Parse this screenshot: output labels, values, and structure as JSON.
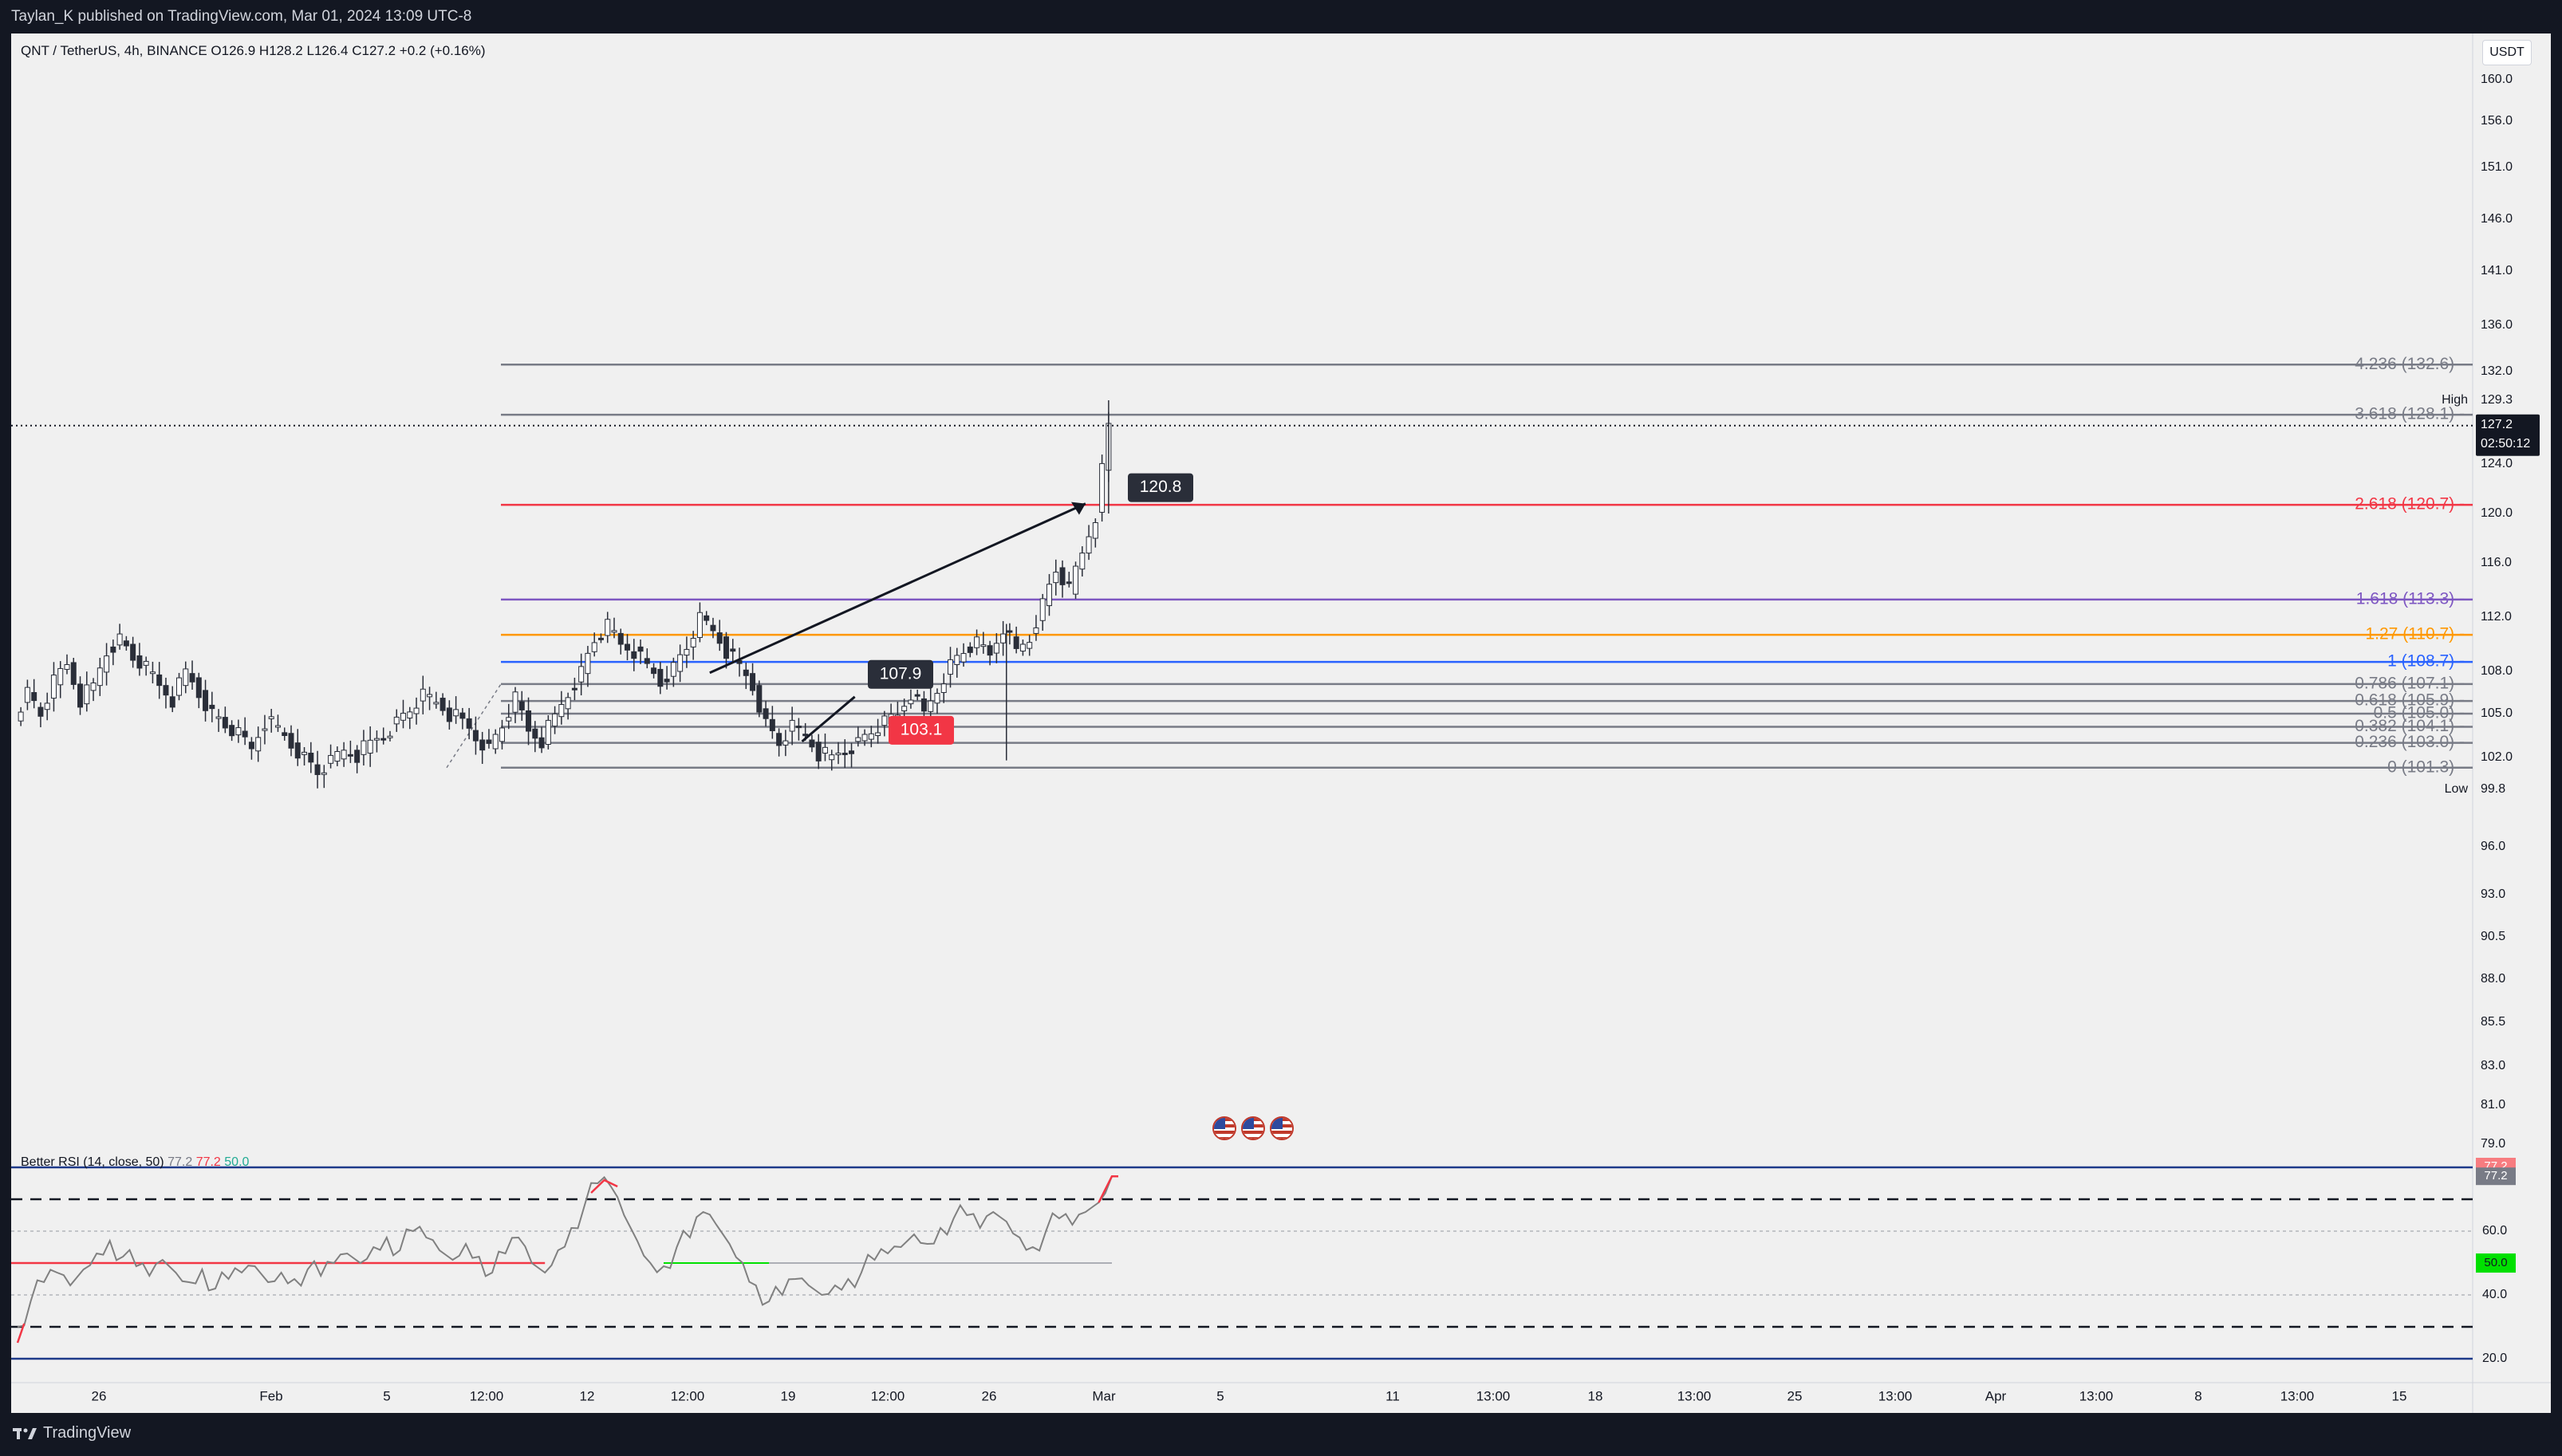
{
  "header": {
    "published_text": "Taylan_K published on TradingView.com, Mar 01, 2024 13:09 UTC-8"
  },
  "symbol": {
    "name": "QNT / TetherUS, 4h, BINANCE",
    "open": "O126.9",
    "high": "H128.2",
    "low": "L126.4",
    "close": "C127.2",
    "change": "+0.2 (+0.16%)"
  },
  "currency_badge": "USDT",
  "footer": {
    "brand": "TradingView"
  },
  "colors": {
    "background": "#131722",
    "chart_bg": "#f0f0f0",
    "candle": "#2a2e39",
    "fib_gray": "#787b86",
    "fib_red": "#f23645",
    "fib_purple": "#7e57c2",
    "fib_orange": "#ff9800",
    "fib_blue": "#2962ff",
    "rsi_line": "#808080",
    "rsi_band": "#1e3a8a",
    "rsi_red": "#f23645",
    "rsi_green": "#00e000"
  },
  "icons": [
    "us-flag-event-icon",
    "us-flag-event-icon",
    "us-flag-event-icon"
  ],
  "chart_data": [
    {
      "type": "candlestick",
      "symbol": "QNT / TetherUS",
      "timeframe": "4h",
      "exchange": "BINANCE",
      "ohlc_last": {
        "open": 126.9,
        "high": 128.2,
        "low": 126.4,
        "close": 127.2,
        "change": 0.2,
        "change_pct": 0.16
      },
      "last_price": "127.2",
      "countdown": "02:50:12",
      "high_marker": {
        "label": "High",
        "value": "129.3"
      },
      "low_marker": {
        "label": "Low",
        "value": "99.8"
      },
      "y_ticks": [
        "160.0",
        "156.0",
        "151.0",
        "146.0",
        "141.0",
        "136.0",
        "132.0",
        "129.3",
        "124.0",
        "120.0",
        "116.0",
        "112.0",
        "108.0",
        "105.0",
        "102.0",
        "99.8",
        "96.0",
        "93.0",
        "90.5",
        "88.0",
        "85.5",
        "83.0",
        "81.0",
        "79.0"
      ],
      "x_ticks": [
        "26",
        "Feb",
        "5",
        "12:00",
        "12",
        "12:00",
        "19",
        "12:00",
        "26",
        "Mar",
        "5",
        "11",
        "13:00",
        "18",
        "13:00",
        "25",
        "13:00",
        "Apr",
        "13:00",
        "8",
        "13:00",
        "15"
      ],
      "fib_levels": [
        {
          "label": "4.236 (132.6)",
          "value": 132.6,
          "color": "#787b86"
        },
        {
          "label": "3.618 (128.1)",
          "value": 128.1,
          "color": "#787b86"
        },
        {
          "label": "2.618 (120.7)",
          "value": 120.7,
          "color": "#f23645"
        },
        {
          "label": "1.618 (113.3)",
          "value": 113.3,
          "color": "#7e57c2"
        },
        {
          "label": "1.27 (110.7)",
          "value": 110.7,
          "color": "#ff9800"
        },
        {
          "label": "1 (108.7)",
          "value": 108.7,
          "color": "#2962ff"
        },
        {
          "label": "0.786 (107.1)",
          "value": 107.1,
          "color": "#787b86"
        },
        {
          "label": "0.618 (105.9)",
          "value": 105.9,
          "color": "#787b86"
        },
        {
          "label": "0.5 (105.0)",
          "value": 105.0,
          "color": "#787b86"
        },
        {
          "label": "0.382 (104.1)",
          "value": 104.1,
          "color": "#787b86"
        },
        {
          "label": "0.236 (103.0)",
          "value": 103.0,
          "color": "#787b86"
        },
        {
          "label": "0 (101.3)",
          "value": 101.3,
          "color": "#787b86"
        }
      ],
      "annotations": [
        {
          "text": "107.9",
          "value": 107.9,
          "style": "dark"
        },
        {
          "text": "103.1",
          "value": 103.1,
          "style": "red"
        },
        {
          "text": "120.8",
          "value": 120.8,
          "style": "dark"
        }
      ],
      "price_path": [
        {
          "x": 0,
          "y": 104.8
        },
        {
          "x": 4,
          "y": 106.5
        },
        {
          "x": 8,
          "y": 105.0
        },
        {
          "x": 12,
          "y": 107.2
        },
        {
          "x": 16,
          "y": 108.5
        },
        {
          "x": 20,
          "y": 106.0
        },
        {
          "x": 24,
          "y": 107.0
        },
        {
          "x": 28,
          "y": 109.5
        },
        {
          "x": 32,
          "y": 110.4
        },
        {
          "x": 36,
          "y": 109.0
        },
        {
          "x": 40,
          "y": 108.2
        },
        {
          "x": 44,
          "y": 107.0
        },
        {
          "x": 48,
          "y": 106.0
        },
        {
          "x": 52,
          "y": 108.0
        },
        {
          "x": 56,
          "y": 106.5
        },
        {
          "x": 60,
          "y": 105.0
        },
        {
          "x": 64,
          "y": 104.2
        },
        {
          "x": 68,
          "y": 103.5
        },
        {
          "x": 72,
          "y": 102.6
        },
        {
          "x": 76,
          "y": 104.5
        },
        {
          "x": 80,
          "y": 104.0
        },
        {
          "x": 84,
          "y": 103.0
        },
        {
          "x": 88,
          "y": 102.0
        },
        {
          "x": 92,
          "y": 101.0
        },
        {
          "x": 96,
          "y": 101.6
        },
        {
          "x": 100,
          "y": 102.5
        },
        {
          "x": 104,
          "y": 102.2
        },
        {
          "x": 108,
          "y": 103.0
        },
        {
          "x": 112,
          "y": 103.6
        },
        {
          "x": 116,
          "y": 104.4
        },
        {
          "x": 120,
          "y": 105.3
        },
        {
          "x": 124,
          "y": 106.2
        },
        {
          "x": 128,
          "y": 105.8
        },
        {
          "x": 132,
          "y": 105.0
        },
        {
          "x": 136,
          "y": 104.5
        },
        {
          "x": 140,
          "y": 103.5
        },
        {
          "x": 144,
          "y": 102.6
        },
        {
          "x": 148,
          "y": 104.2
        },
        {
          "x": 152,
          "y": 106.0
        },
        {
          "x": 156,
          "y": 103.8
        },
        {
          "x": 160,
          "y": 103.2
        },
        {
          "x": 164,
          "y": 104.8
        },
        {
          "x": 168,
          "y": 106.5
        },
        {
          "x": 172,
          "y": 108.0
        },
        {
          "x": 176,
          "y": 110.3
        },
        {
          "x": 180,
          "y": 111.3
        },
        {
          "x": 184,
          "y": 110.0
        },
        {
          "x": 188,
          "y": 109.5
        },
        {
          "x": 192,
          "y": 108.4
        },
        {
          "x": 196,
          "y": 107.3
        },
        {
          "x": 200,
          "y": 108.3
        },
        {
          "x": 204,
          "y": 109.8
        },
        {
          "x": 208,
          "y": 111.8
        },
        {
          "x": 212,
          "y": 111.0
        },
        {
          "x": 216,
          "y": 109.5
        },
        {
          "x": 220,
          "y": 108.4
        },
        {
          "x": 224,
          "y": 107.0
        },
        {
          "x": 228,
          "y": 104.3
        },
        {
          "x": 232,
          "y": 103.0
        },
        {
          "x": 236,
          "y": 104.0
        },
        {
          "x": 240,
          "y": 103.5
        },
        {
          "x": 244,
          "y": 102.3
        },
        {
          "x": 248,
          "y": 102.0
        },
        {
          "x": 252,
          "y": 102.6
        },
        {
          "x": 256,
          "y": 103.0
        },
        {
          "x": 260,
          "y": 103.8
        },
        {
          "x": 264,
          "y": 104.3
        },
        {
          "x": 268,
          "y": 104.9
        },
        {
          "x": 272,
          "y": 106.5
        },
        {
          "x": 276,
          "y": 105.0
        },
        {
          "x": 280,
          "y": 106.8
        },
        {
          "x": 284,
          "y": 108.5
        },
        {
          "x": 288,
          "y": 109.5
        },
        {
          "x": 292,
          "y": 110.0
        },
        {
          "x": 296,
          "y": 109.2
        },
        {
          "x": 300,
          "y": 111.3
        },
        {
          "x": 304,
          "y": 109.5
        },
        {
          "x": 308,
          "y": 110.5
        },
        {
          "x": 312,
          "y": 113.0
        },
        {
          "x": 316,
          "y": 115.5
        },
        {
          "x": 320,
          "y": 114.0
        },
        {
          "x": 324,
          "y": 116.8
        },
        {
          "x": 328,
          "y": 119.8
        },
        {
          "x": 332,
          "y": 127.2
        }
      ]
    },
    {
      "type": "line",
      "title": "Better RSI (14, close, 50)",
      "legend_values": [
        "77.2",
        "77.2",
        "50.0"
      ],
      "y_ticks": [
        "77.2",
        "60.0",
        "50.0",
        "40.0",
        "20.0"
      ],
      "levels": [
        70,
        60,
        40,
        30
      ],
      "bands": [
        80,
        20
      ],
      "midline": 50,
      "last_value": 77.2,
      "rsi_path": [
        {
          "x": 0,
          "y": 30
        },
        {
          "x": 4,
          "y": 38
        },
        {
          "x": 8,
          "y": 44
        },
        {
          "x": 12,
          "y": 47
        },
        {
          "x": 16,
          "y": 43
        },
        {
          "x": 20,
          "y": 48
        },
        {
          "x": 24,
          "y": 53
        },
        {
          "x": 28,
          "y": 57
        },
        {
          "x": 32,
          "y": 52
        },
        {
          "x": 36,
          "y": 49
        },
        {
          "x": 40,
          "y": 46
        },
        {
          "x": 44,
          "y": 51
        },
        {
          "x": 48,
          "y": 47
        },
        {
          "x": 52,
          "y": 44
        },
        {
          "x": 56,
          "y": 48
        },
        {
          "x": 60,
          "y": 42
        },
        {
          "x": 64,
          "y": 45
        },
        {
          "x": 68,
          "y": 47
        },
        {
          "x": 72,
          "y": 49
        },
        {
          "x": 76,
          "y": 44
        },
        {
          "x": 80,
          "y": 47
        },
        {
          "x": 84,
          "y": 45
        },
        {
          "x": 88,
          "y": 48
        },
        {
          "x": 92,
          "y": 46
        },
        {
          "x": 96,
          "y": 50
        },
        {
          "x": 100,
          "y": 53
        },
        {
          "x": 104,
          "y": 50
        },
        {
          "x": 108,
          "y": 55
        },
        {
          "x": 112,
          "y": 58
        },
        {
          "x": 116,
          "y": 54
        },
        {
          "x": 120,
          "y": 60
        },
        {
          "x": 124,
          "y": 58
        },
        {
          "x": 128,
          "y": 54
        },
        {
          "x": 132,
          "y": 51
        },
        {
          "x": 136,
          "y": 56
        },
        {
          "x": 140,
          "y": 52
        },
        {
          "x": 144,
          "y": 47
        },
        {
          "x": 148,
          "y": 53
        },
        {
          "x": 152,
          "y": 58
        },
        {
          "x": 156,
          "y": 50
        },
        {
          "x": 160,
          "y": 47
        },
        {
          "x": 164,
          "y": 54
        },
        {
          "x": 168,
          "y": 61
        },
        {
          "x": 172,
          "y": 68
        },
        {
          "x": 176,
          "y": 75
        },
        {
          "x": 180,
          "y": 74
        },
        {
          "x": 184,
          "y": 65
        },
        {
          "x": 188,
          "y": 57
        },
        {
          "x": 192,
          "y": 50
        },
        {
          "x": 196,
          "y": 49
        },
        {
          "x": 200,
          "y": 55
        },
        {
          "x": 204,
          "y": 58
        },
        {
          "x": 208,
          "y": 66
        },
        {
          "x": 212,
          "y": 62
        },
        {
          "x": 216,
          "y": 56
        },
        {
          "x": 220,
          "y": 50
        },
        {
          "x": 224,
          "y": 43
        },
        {
          "x": 228,
          "y": 38
        },
        {
          "x": 232,
          "y": 40
        },
        {
          "x": 236,
          "y": 45
        },
        {
          "x": 240,
          "y": 43
        },
        {
          "x": 244,
          "y": 40
        },
        {
          "x": 248,
          "y": 43
        },
        {
          "x": 252,
          "y": 45
        },
        {
          "x": 256,
          "y": 47
        },
        {
          "x": 260,
          "y": 51
        },
        {
          "x": 264,
          "y": 53
        },
        {
          "x": 268,
          "y": 55
        },
        {
          "x": 272,
          "y": 59
        },
        {
          "x": 276,
          "y": 56
        },
        {
          "x": 280,
          "y": 61
        },
        {
          "x": 284,
          "y": 64
        },
        {
          "x": 288,
          "y": 65
        },
        {
          "x": 292,
          "y": 61
        },
        {
          "x": 296,
          "y": 66
        },
        {
          "x": 300,
          "y": 63
        },
        {
          "x": 304,
          "y": 58
        },
        {
          "x": 308,
          "y": 55
        },
        {
          "x": 312,
          "y": 60
        },
        {
          "x": 316,
          "y": 64
        },
        {
          "x": 320,
          "y": 62
        },
        {
          "x": 324,
          "y": 66
        },
        {
          "x": 328,
          "y": 69
        },
        {
          "x": 332,
          "y": 77.2
        }
      ]
    }
  ]
}
